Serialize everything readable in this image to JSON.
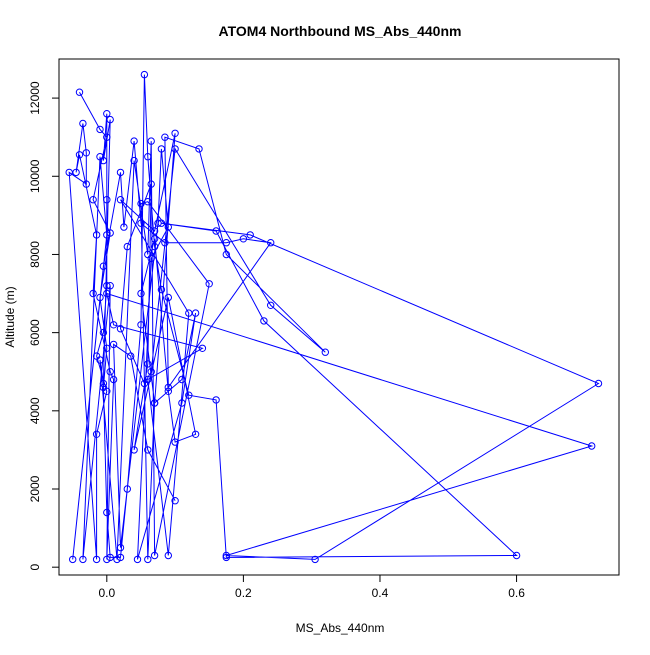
{
  "chart_data": {
    "type": "line",
    "title": "ATOM4 Northbound MS_Abs_440nm",
    "xlabel": "MS_Abs_440nm",
    "ylabel": "Altitude (m)",
    "xlim": [
      -0.07,
      0.75
    ],
    "ylim": [
      -200,
      13000
    ],
    "xticks": [
      0.0,
      0.2,
      0.4,
      0.6
    ],
    "yticks": [
      0,
      2000,
      4000,
      6000,
      8000,
      10000,
      12000
    ],
    "xtick_labels": [
      "0.0",
      "0.2",
      "0.4",
      "0.6"
    ],
    "ytick_labels": [
      "0",
      "2000",
      "4000",
      "6000",
      "8000",
      "10000",
      "12000"
    ],
    "grid": false,
    "marker": "open-circle",
    "series_color": "#0000ff",
    "series": [
      {
        "points": [
          [
            -0.04,
            12150
          ],
          [
            -0.01,
            11200
          ],
          [
            0.0,
            11000
          ],
          [
            -0.02,
            9400
          ],
          [
            0.005,
            8550
          ],
          [
            -0.01,
            6900
          ],
          [
            0.0,
            5600
          ],
          [
            -0.005,
            4600
          ],
          [
            0.0,
            1400
          ],
          [
            0.005,
            250
          ],
          [
            0.02,
            250
          ],
          [
            0.03,
            2000
          ],
          [
            0.05,
            6200
          ],
          [
            0.055,
            12600
          ],
          [
            0.06,
            10500
          ],
          [
            0.07,
            8200
          ],
          [
            0.08,
            7100
          ],
          [
            0.12,
            4400
          ],
          [
            0.16,
            4280
          ],
          [
            0.175,
            250
          ],
          [
            0.6,
            300
          ],
          [
            0.23,
            6300
          ],
          [
            0.16,
            8600
          ],
          [
            0.08,
            8800
          ],
          [
            0.21,
            8500
          ],
          [
            0.72,
            4700
          ],
          [
            0.305,
            200
          ],
          [
            0.175,
            300
          ],
          [
            0.71,
            3100
          ],
          [
            0.0,
            7000
          ],
          [
            0.01,
            6200
          ],
          [
            0.14,
            5600
          ],
          [
            0.06,
            4800
          ],
          [
            0.09,
            300
          ],
          [
            0.12,
            6500
          ],
          [
            0.02,
            9400
          ],
          [
            0.07,
            8600
          ],
          [
            0.1,
            11100
          ],
          [
            0.07,
            4200
          ],
          [
            0.06,
            200
          ],
          [
            0.05,
            9300
          ],
          [
            0.06,
            9350
          ],
          [
            0.15,
            7250
          ],
          [
            0.07,
            300
          ],
          [
            0.065,
            10900
          ],
          [
            0.06,
            8000
          ],
          [
            0.04,
            10400
          ],
          [
            0.015,
            200
          ],
          [
            -0.01,
            5300
          ],
          [
            -0.005,
            4700
          ],
          [
            0.005,
            11450
          ],
          [
            -0.005,
            10400
          ],
          [
            0.0,
            11600
          ],
          [
            0.0,
            9400
          ],
          [
            0.0,
            7200
          ],
          [
            -0.005,
            6000
          ],
          [
            -0.015,
            5400
          ],
          [
            0.0,
            4500
          ],
          [
            -0.015,
            3400
          ],
          [
            -0.015,
            200
          ],
          [
            -0.055,
            10100
          ],
          [
            -0.03,
            9800
          ],
          [
            -0.03,
            10600
          ],
          [
            -0.035,
            11350
          ],
          [
            -0.045,
            10100
          ],
          [
            -0.04,
            10550
          ],
          [
            -0.015,
            8500
          ],
          [
            -0.02,
            7000
          ],
          [
            0.005,
            5000
          ],
          [
            0.01,
            4800
          ],
          [
            0.0,
            200
          ],
          [
            0.005,
            7200
          ],
          [
            -0.035,
            200
          ],
          [
            -0.01,
            10500
          ],
          [
            0.0,
            8500
          ],
          [
            -0.05,
            200
          ],
          [
            -0.005,
            7700
          ],
          [
            0.02,
            10100
          ],
          [
            0.025,
            8700
          ],
          [
            0.04,
            10900
          ],
          [
            0.05,
            8800
          ],
          [
            0.085,
            8300
          ],
          [
            0.175,
            8300
          ],
          [
            0.2,
            8400
          ],
          [
            0.24,
            8300
          ],
          [
            0.09,
            4600
          ],
          [
            0.085,
            11000
          ],
          [
            0.135,
            10700
          ],
          [
            0.175,
            8000
          ],
          [
            0.32,
            5500
          ],
          [
            0.24,
            6700
          ],
          [
            0.1,
            10700
          ],
          [
            0.065,
            5000
          ],
          [
            0.055,
            4700
          ],
          [
            0.02,
            6100
          ],
          [
            0.03,
            8200
          ],
          [
            0.065,
            9800
          ],
          [
            0.06,
            5200
          ],
          [
            0.04,
            3000
          ],
          [
            0.09,
            6900
          ],
          [
            0.13,
            3400
          ],
          [
            0.1,
            3200
          ],
          [
            0.09,
            4500
          ],
          [
            0.07,
            8400
          ],
          [
            0.05,
            7000
          ],
          [
            0.07,
            4200
          ],
          [
            0.11,
            4800
          ],
          [
            0.13,
            6500
          ],
          [
            0.11,
            4200
          ],
          [
            0.045,
            200
          ],
          [
            0.065,
            7900
          ],
          [
            0.09,
            8700
          ],
          [
            0.08,
            10700
          ],
          [
            0.075,
            8800
          ],
          [
            0.02,
            500
          ],
          [
            0.01,
            5700
          ],
          [
            0.035,
            5400
          ],
          [
            0.06,
            3000
          ],
          [
            0.1,
            1700
          ]
        ]
      }
    ]
  }
}
